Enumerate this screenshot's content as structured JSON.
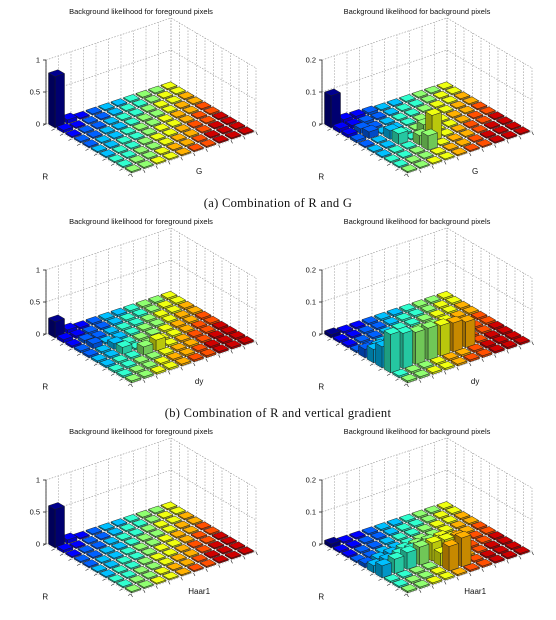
{
  "figure": {
    "captions": [
      "(a) Combination of R and G",
      "(b) Combination of R and vertical gradient",
      ""
    ]
  },
  "chart_data": [
    {
      "type": "bar3d",
      "row": 0,
      "col": 0,
      "title": "Background likelihood for foreground pixels",
      "xlabel": "R",
      "ylabel": "G",
      "zlim": [
        0,
        1
      ],
      "zticks": [
        "0",
        "0.5",
        "1"
      ],
      "grid": true,
      "tallest_bar": {
        "r_bin": 1,
        "other_bin": 1,
        "value": 0.8
      },
      "floor_value": 0.02
    },
    {
      "type": "bar3d",
      "row": 0,
      "col": 1,
      "title": "Background likelihood for background pixels",
      "xlabel": "R",
      "ylabel": "G",
      "zlim": [
        0,
        0.2
      ],
      "zticks": [
        "0",
        "0.1",
        "0.2"
      ],
      "grid": true,
      "tallest_bar": {
        "r_bin": 1,
        "other_bin": 1,
        "value": 0.1
      },
      "secondary_peak": {
        "r_bin": 7,
        "other_bin": 5,
        "value": 0.08
      },
      "floor_value": 0.004
    },
    {
      "type": "bar3d",
      "row": 1,
      "col": 0,
      "title": "Background likelihood for foreground pixels",
      "xlabel": "R",
      "ylabel": "dy",
      "zlim": [
        0,
        1
      ],
      "zticks": [
        "0",
        "0.5",
        "1"
      ],
      "grid": true,
      "tallest_bar": {
        "r_bin": 1,
        "other_bin": 1,
        "value": 0.25
      },
      "secondary_peak": {
        "r_bin": 7,
        "other_bin": 5,
        "value": 0.17
      },
      "floor_value": 0.03
    },
    {
      "type": "bar3d",
      "row": 1,
      "col": 1,
      "title": "Background likelihood for background pixels",
      "xlabel": "R",
      "ylabel": "dy",
      "zlim": [
        0,
        0.2
      ],
      "zticks": [
        "0",
        "0.1",
        "0.2"
      ],
      "grid": true,
      "tallest_bar": {
        "r_bin": 8,
        "other_bin": 1,
        "value": 0.12
      },
      "ridge_values": [
        0.12,
        0.11,
        0.1,
        0.1,
        0.095,
        0.09,
        0.08
      ],
      "floor_value": 0.006
    },
    {
      "type": "bar3d",
      "row": 2,
      "col": 0,
      "title": "Background likelihood for foreground pixels",
      "xlabel": "R",
      "ylabel": "Haar1",
      "zlim": [
        0,
        1
      ],
      "zticks": [
        "0",
        "0.5",
        "1"
      ],
      "grid": true,
      "tallest_bar": {
        "r_bin": 1,
        "other_bin": 1,
        "value": 0.6
      },
      "floor_value": 0.02
    },
    {
      "type": "bar3d",
      "row": 2,
      "col": 1,
      "title": "Background likelihood for background pixels",
      "xlabel": "R",
      "ylabel": "Haar1",
      "zlim": [
        0,
        0.2
      ],
      "zticks": [
        "0",
        "0.1",
        "0.2"
      ],
      "grid": true,
      "tallest_bar": {
        "r_bin": 9,
        "other_bin": 6,
        "value": 0.09
      },
      "ridge_values": [
        0.05,
        0.06,
        0.07,
        0.075,
        0.075,
        0.07,
        0.065
      ],
      "floor_value": 0.005
    }
  ]
}
